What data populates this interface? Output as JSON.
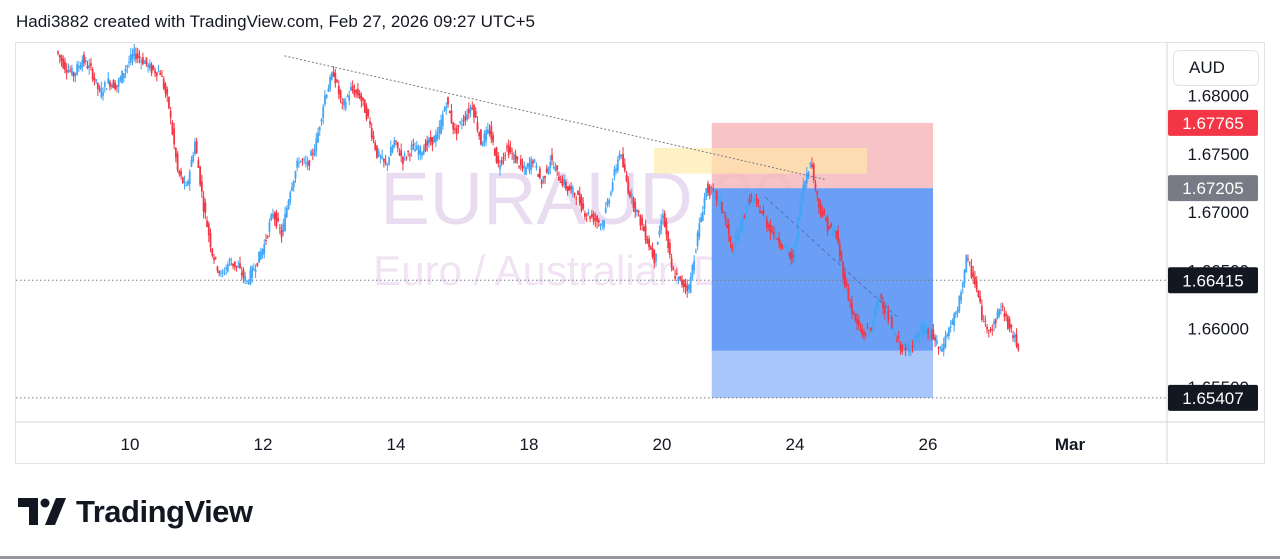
{
  "header": {
    "text": "Hadi3882 created with TradingView.com, Feb 27, 2026 09:27 UTC+5"
  },
  "brand": {
    "name": "TradingView",
    "logo_icon": "tradingview-logo-icon"
  },
  "currency_button": {
    "label": "AUD"
  },
  "watermark": {
    "symbol": "EURAUD 30",
    "name": "Euro / Australian Dollar"
  },
  "colors": {
    "up": "#089981",
    "down": "#f23645",
    "candle_up": "#42a5f5",
    "stop_zone": "#f7b8bc",
    "target_zone": "#6a9ff5",
    "target_zone_light": "#a8c6fa",
    "trendline": "#787b86"
  },
  "chart_data": {
    "type": "candlestick",
    "symbol": "EURAUD",
    "timeframe": "30",
    "x_ticks": [
      "10",
      "12",
      "14",
      "18",
      "20",
      "24",
      "26",
      "Mar"
    ],
    "y_ticks": [
      "1.68000",
      "1.67500",
      "1.67000",
      "1.66500",
      "1.66000",
      "1.65500"
    ],
    "ylim": [
      1.652,
      1.6845
    ],
    "price_labels": [
      {
        "label": "1.67765",
        "value": 1.67765,
        "style": "stop"
      },
      {
        "label": "1.67205",
        "value": 1.67205,
        "style": "entry"
      },
      {
        "label": "1.66415",
        "value": 1.66415,
        "style": "last"
      },
      {
        "label": "1.65407",
        "value": 1.65407,
        "style": "target"
      }
    ],
    "position": {
      "side": "short",
      "entry": 1.67205,
      "stop": 1.67765,
      "target": 1.65407,
      "start_date": "Feb 23",
      "end_date": "Feb 26"
    },
    "trendline": {
      "from": {
        "date": "Feb 13",
        "price": 1.6834
      },
      "to": {
        "date": "Feb 24",
        "price": 1.6728
      }
    },
    "supply_zone": {
      "from_date": "Feb 20",
      "to_date": "Feb 24",
      "top": 1.6755,
      "bottom": 1.6733
    },
    "price_path": [
      [
        "Feb 9",
        1.6838
      ],
      [
        "Feb 9",
        1.6825
      ],
      [
        "Feb 9",
        1.6818
      ],
      [
        "Feb 9",
        1.6831
      ],
      [
        "Feb 9",
        1.6822
      ],
      [
        "Feb 10",
        1.6802
      ],
      [
        "Feb 10",
        1.6812
      ],
      [
        "Feb 10",
        1.6808
      ],
      [
        "Feb 10",
        1.6824
      ],
      [
        "Feb 10",
        1.6836
      ],
      [
        "Feb 11",
        1.683
      ],
      [
        "Feb 11",
        1.6822
      ],
      [
        "Feb 11",
        1.682
      ],
      [
        "Feb 11",
        1.679
      ],
      [
        "Feb 11",
        1.6735
      ],
      [
        "Feb 11",
        1.672
      ],
      [
        "Feb 11",
        1.676
      ],
      [
        "Feb 12",
        1.6705
      ],
      [
        "Feb 12",
        1.6665
      ],
      [
        "Feb 12",
        1.6645
      ],
      [
        "Feb 12",
        1.6658
      ],
      [
        "Feb 12",
        1.6652
      ],
      [
        "Feb 12",
        1.664
      ],
      [
        "Feb 12",
        1.6655
      ],
      [
        "Feb 13",
        1.6672
      ],
      [
        "Feb 13",
        1.67
      ],
      [
        "Feb 13",
        1.668
      ],
      [
        "Feb 13",
        1.672
      ],
      [
        "Feb 13",
        1.6745
      ],
      [
        "Feb 13",
        1.674
      ],
      [
        "Feb 13",
        1.676
      ],
      [
        "Feb 14",
        1.68
      ],
      [
        "Feb 14",
        1.682
      ],
      [
        "Feb 14",
        1.679
      ],
      [
        "Feb 14",
        1.6805
      ],
      [
        "Feb 14",
        1.68
      ],
      [
        "Feb 14",
        1.678
      ],
      [
        "Feb 15",
        1.675
      ],
      [
        "Feb 15",
        1.674
      ],
      [
        "Feb 15",
        1.676
      ],
      [
        "Feb 15",
        1.6745
      ],
      [
        "Feb 16",
        1.6755
      ],
      [
        "Feb 16",
        1.6752
      ],
      [
        "Feb 16",
        1.676
      ],
      [
        "Feb 16",
        1.6765
      ],
      [
        "Feb 17",
        1.6795
      ],
      [
        "Feb 17",
        1.6768
      ],
      [
        "Feb 17",
        1.678
      ],
      [
        "Feb 17",
        1.6792
      ],
      [
        "Feb 17",
        1.676
      ],
      [
        "Feb 18",
        1.677
      ],
      [
        "Feb 18",
        1.674
      ],
      [
        "Feb 18",
        1.6755
      ],
      [
        "Feb 18",
        1.6745
      ],
      [
        "Feb 18",
        1.6735
      ],
      [
        "Feb 19",
        1.6745
      ],
      [
        "Feb 19",
        1.6725
      ],
      [
        "Feb 19",
        1.6745
      ],
      [
        "Feb 19",
        1.673
      ],
      [
        "Feb 19",
        1.672
      ],
      [
        "Feb 20",
        1.6715
      ],
      [
        "Feb 20",
        1.67
      ],
      [
        "Feb 20",
        1.6695
      ],
      [
        "Feb 20",
        1.669
      ],
      [
        "Feb 20",
        1.672
      ],
      [
        "Feb 20",
        1.6752
      ],
      [
        "Feb 20",
        1.672
      ],
      [
        "Feb 21",
        1.67
      ],
      [
        "Feb 21",
        1.668
      ],
      [
        "Feb 21",
        1.666
      ],
      [
        "Feb 21",
        1.67
      ],
      [
        "Feb 21",
        1.665
      ],
      [
        "Feb 22",
        1.664
      ],
      [
        "Feb 22",
        1.6635
      ],
      [
        "Feb 22",
        1.668
      ],
      [
        "Feb 23",
        1.672
      ],
      [
        "Feb 23",
        1.6715
      ],
      [
        "Feb 23",
        1.67
      ],
      [
        "Feb 23",
        1.6665
      ],
      [
        "Feb 23",
        1.669
      ],
      [
        "Feb 24",
        1.6712
      ],
      [
        "Feb 24",
        1.6705
      ],
      [
        "Feb 24",
        1.669
      ],
      [
        "Feb 24",
        1.668
      ],
      [
        "Feb 24",
        1.667
      ],
      [
        "Feb 24",
        1.6658
      ],
      [
        "Feb 24",
        1.6715
      ],
      [
        "Feb 24",
        1.6745
      ],
      [
        "Feb 25",
        1.6705
      ],
      [
        "Feb 25",
        1.6688
      ],
      [
        "Feb 25",
        1.668
      ],
      [
        "Feb 25",
        1.664
      ],
      [
        "Feb 25",
        1.661
      ],
      [
        "Feb 25",
        1.6595
      ],
      [
        "Feb 26",
        1.66
      ],
      [
        "Feb 26",
        1.663
      ],
      [
        "Feb 26",
        1.661
      ],
      [
        "Feb 26",
        1.659
      ],
      [
        "Feb 26",
        1.658
      ],
      [
        "Feb 26",
        1.659
      ],
      [
        "Feb 26",
        1.66
      ],
      [
        "Feb 27",
        1.6595
      ],
      [
        "Feb 27",
        1.658
      ],
      [
        "Feb 27",
        1.66
      ],
      [
        "Feb 27",
        1.6615
      ],
      [
        "Feb 27",
        1.666
      ],
      [
        "Feb 27",
        1.664
      ],
      [
        "Feb 27",
        1.6605
      ],
      [
        "Feb 27",
        1.66
      ],
      [
        "Feb 27",
        1.662
      ],
      [
        "Feb 27",
        1.66
      ],
      [
        "Feb 27",
        1.6585
      ]
    ]
  }
}
